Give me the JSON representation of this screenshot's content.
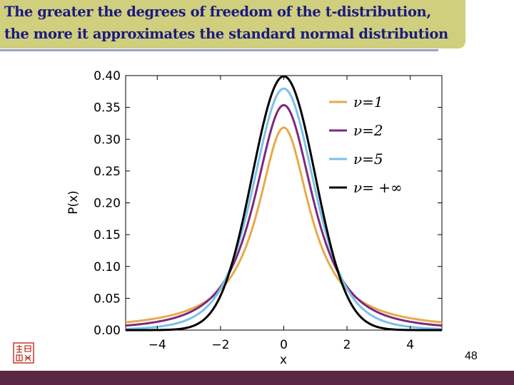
{
  "slide": {
    "title_line1": "The greater the degrees of freedom of the t-distribution,",
    "title_line2": "the more it approximates the standard normal distribution",
    "page_number": "48"
  },
  "colors": {
    "title_background": "#cfcf7d",
    "title_text": "#1b1b80",
    "footer_bar": "#5b2745",
    "seal": "#c0392b"
  },
  "chart_data": {
    "type": "line",
    "xlabel": "x",
    "ylabel": "P(x)",
    "xlim": [
      -5,
      5
    ],
    "ylim": [
      0,
      0.4
    ],
    "x_ticks": [
      -4,
      -2,
      0,
      2,
      4
    ],
    "x_tick_labels": [
      "−4",
      "−2",
      "0",
      "2",
      "4"
    ],
    "y_ticks": [
      0,
      0.05,
      0.1,
      0.15,
      0.2,
      0.25,
      0.3,
      0.35,
      0.4
    ],
    "y_tick_labels": [
      "0.00",
      "0.05",
      "0.10",
      "0.15",
      "0.20",
      "0.25",
      "0.30",
      "0.35",
      "0.40"
    ],
    "grid": false,
    "legend_position": "top-right",
    "series": [
      {
        "name": "ν=1",
        "nu": 1,
        "color": "#e8a94a"
      },
      {
        "name": "ν=2",
        "nu": 2,
        "color": "#7b2a7e"
      },
      {
        "name": "ν=5",
        "nu": 5,
        "color": "#79c1ea"
      },
      {
        "name": "ν= +∞",
        "nu": "infinity",
        "color": "#000000"
      }
    ]
  }
}
